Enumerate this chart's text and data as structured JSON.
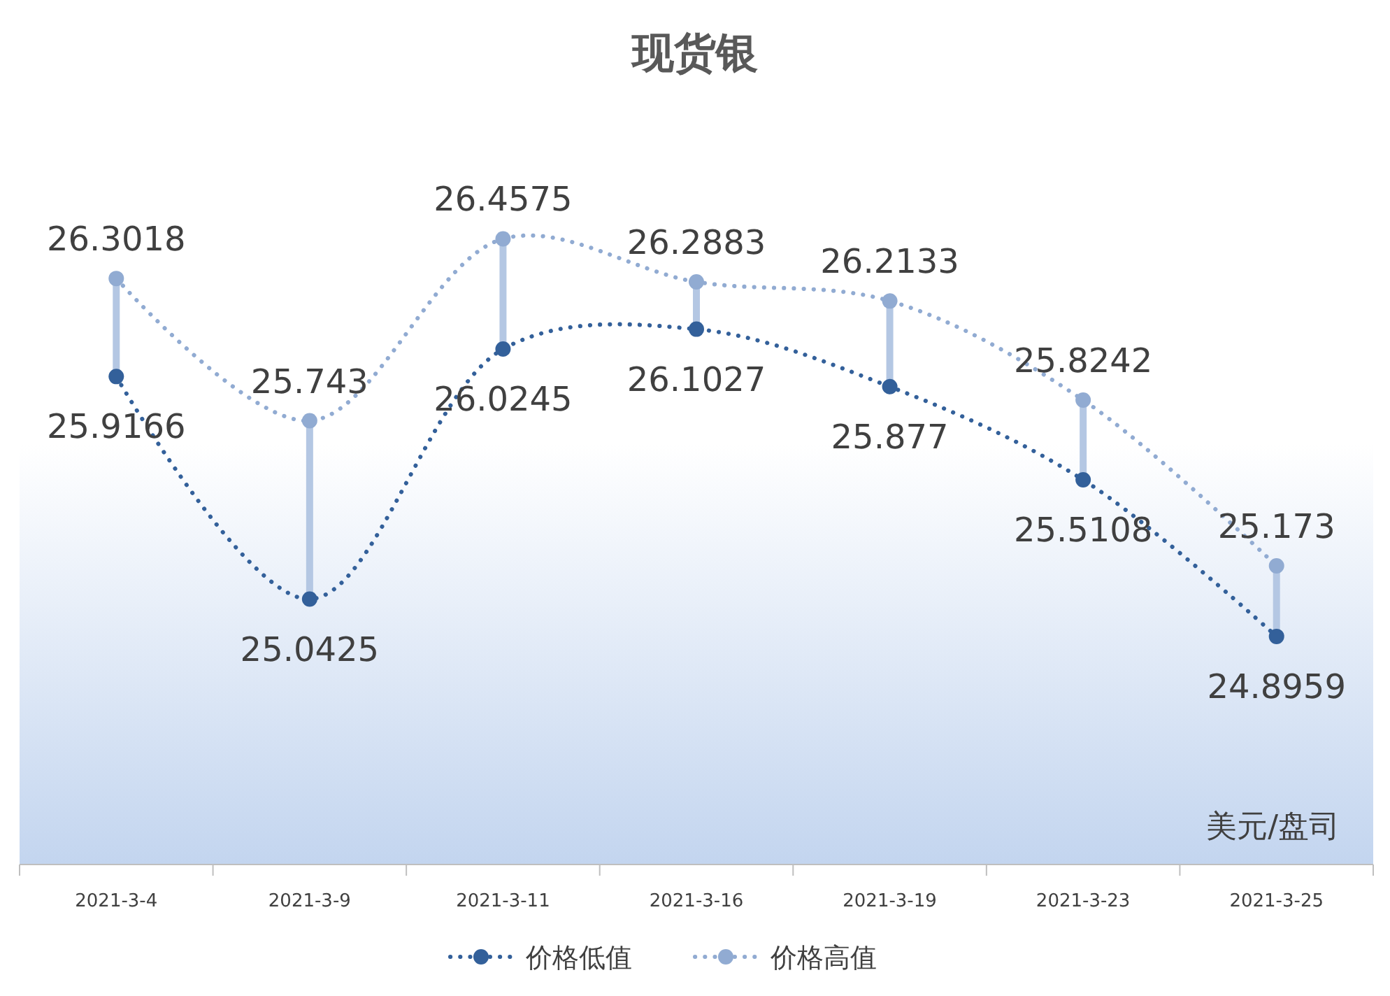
{
  "chart_data": {
    "type": "line",
    "title": "现货银",
    "categories": [
      "2021-3-4",
      "2021-3-9",
      "2021-3-11",
      "2021-3-16",
      "2021-3-19",
      "2021-3-23",
      "2021-3-25"
    ],
    "series": [
      {
        "name": "价格低值",
        "color": "#33609a",
        "values": [
          25.9166,
          25.0425,
          26.0245,
          26.1027,
          25.877,
          25.5108,
          24.8959
        ]
      },
      {
        "name": "价格高值",
        "color": "#91abd2",
        "values": [
          26.3018,
          25.743,
          26.4575,
          26.2883,
          26.2133,
          25.8242,
          25.173
        ]
      }
    ],
    "ylim": [
      24,
      27
    ],
    "tick_labels": "x",
    "data_labels": true,
    "marker": "circle",
    "line_style": "dotted",
    "legend": "bottom",
    "grid": false,
    "annotations": [
      "美元/盘司"
    ]
  }
}
